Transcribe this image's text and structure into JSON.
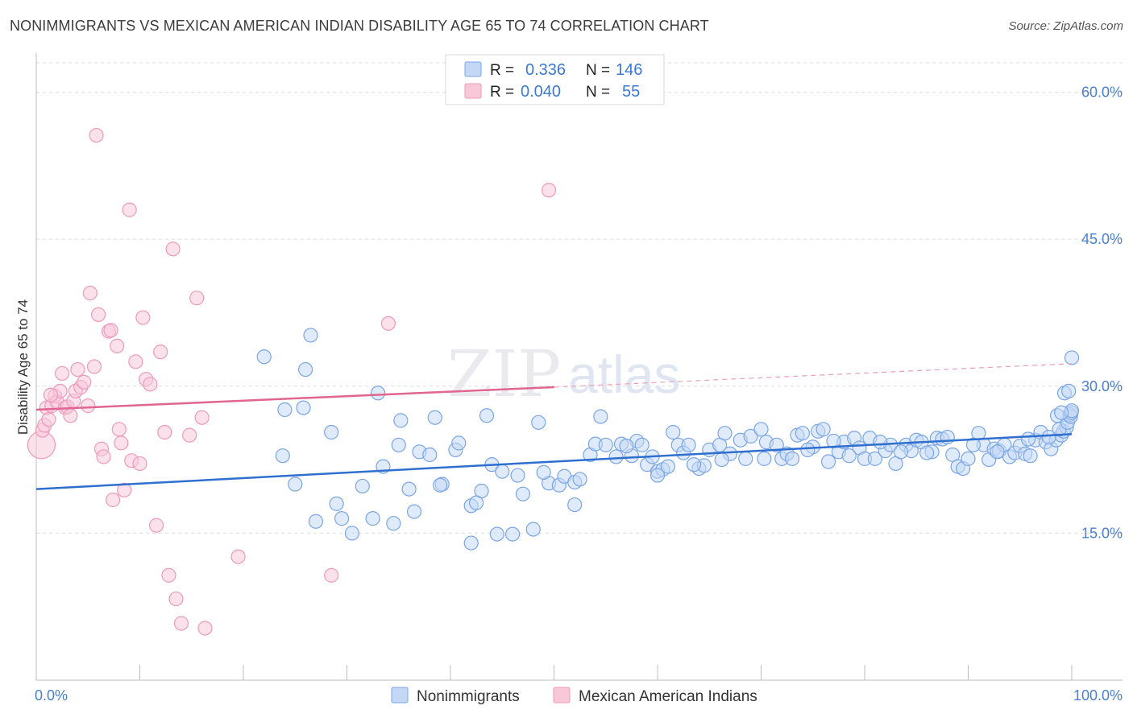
{
  "header": {
    "title": "NONIMMIGRANTS VS MEXICAN AMERICAN INDIAN DISABILITY AGE 65 TO 74 CORRELATION CHART",
    "source": "Source: ZipAtlas.com"
  },
  "watermark": {
    "zip": "ZIP",
    "atlas": "atlas"
  },
  "chart_data": {
    "type": "scatter",
    "xlabel": "",
    "ylabel": "Disability Age 65 to 74",
    "xlim": [
      0,
      100
    ],
    "ylim": [
      0,
      63
    ],
    "x_tick_labels": [
      {
        "value": 0,
        "label": "0.0%"
      },
      {
        "value": 100,
        "label": "100.0%"
      }
    ],
    "y_tick_labels": [
      {
        "value": 15,
        "label": "15.0%"
      },
      {
        "value": 30,
        "label": "30.0%"
      },
      {
        "value": 45,
        "label": "45.0%"
      },
      {
        "value": 60,
        "label": "60.0%"
      }
    ],
    "x_minor_ticks": [
      0,
      10,
      20,
      30,
      40,
      50,
      60,
      70,
      80,
      90,
      100
    ],
    "grid": true,
    "legend_position": "top-center",
    "stats": [
      {
        "r_label": "R =",
        "r_value": "0.336",
        "n_label": "N =",
        "n_value": "146",
        "color": "#6f9fe0"
      },
      {
        "r_label": "R =",
        "r_value": "0.040",
        "n_label": "N =",
        "n_value": "55",
        "color": "#ee8fb0"
      }
    ],
    "series": [
      {
        "name": "Nonimmigrants",
        "color": "#7aa6e6",
        "fill": "#c4d8f6",
        "trend": {
          "x0": 0,
          "y0": 19.5,
          "x1": 100,
          "y1": 25.1
        },
        "points": [
          [
            22.0,
            33.0
          ],
          [
            26.5,
            35.2
          ],
          [
            26.0,
            31.7
          ],
          [
            24.0,
            27.6
          ],
          [
            25.8,
            27.8
          ],
          [
            28.5,
            25.3
          ],
          [
            33.0,
            29.3
          ],
          [
            35.2,
            26.5
          ],
          [
            23.8,
            22.9
          ],
          [
            25.0,
            20.0
          ],
          [
            27.0,
            16.2
          ],
          [
            29.0,
            18.0
          ],
          [
            30.5,
            15.0
          ],
          [
            29.5,
            16.5
          ],
          [
            31.5,
            19.8
          ],
          [
            33.5,
            21.8
          ],
          [
            32.5,
            16.5
          ],
          [
            34.5,
            16.0
          ],
          [
            35.0,
            24.0
          ],
          [
            36.0,
            19.5
          ],
          [
            36.5,
            17.2
          ],
          [
            37.0,
            23.3
          ],
          [
            38.0,
            23.0
          ],
          [
            39.2,
            20.0
          ],
          [
            39.0,
            19.9
          ],
          [
            38.5,
            26.8
          ],
          [
            40.5,
            23.5
          ],
          [
            40.8,
            24.2
          ],
          [
            42.0,
            17.8
          ],
          [
            43.0,
            19.3
          ],
          [
            43.5,
            27.0
          ],
          [
            44.0,
            22.0
          ],
          [
            42.5,
            18.1
          ],
          [
            45.0,
            21.3
          ],
          [
            46.0,
            14.9
          ],
          [
            46.5,
            20.9
          ],
          [
            47.0,
            19.0
          ],
          [
            48.0,
            15.4
          ],
          [
            48.5,
            26.3
          ],
          [
            49.5,
            20.1
          ],
          [
            49.0,
            21.2
          ],
          [
            50.5,
            19.9
          ],
          [
            51.0,
            20.8
          ],
          [
            52.0,
            20.2
          ],
          [
            52.5,
            20.5
          ],
          [
            52.0,
            17.9
          ],
          [
            53.5,
            23.0
          ],
          [
            54.0,
            24.1
          ],
          [
            54.5,
            26.9
          ],
          [
            55.0,
            24.0
          ],
          [
            56.0,
            22.8
          ],
          [
            56.5,
            24.1
          ],
          [
            57.5,
            22.9
          ],
          [
            58.0,
            24.4
          ],
          [
            59.0,
            22.0
          ],
          [
            59.5,
            22.8
          ],
          [
            60.0,
            21.3
          ],
          [
            60.5,
            21.5
          ],
          [
            61.5,
            25.3
          ],
          [
            62.0,
            24.0
          ],
          [
            62.5,
            23.2
          ],
          [
            63.0,
            24.0
          ],
          [
            64.0,
            21.6
          ],
          [
            64.5,
            21.9
          ],
          [
            65.0,
            23.5
          ],
          [
            66.0,
            24.0
          ],
          [
            66.5,
            25.2
          ],
          [
            67.0,
            23.1
          ],
          [
            68.0,
            24.5
          ],
          [
            68.5,
            22.6
          ],
          [
            69.0,
            24.9
          ],
          [
            70.0,
            25.6
          ],
          [
            70.5,
            24.3
          ],
          [
            71.5,
            24.0
          ],
          [
            72.0,
            22.6
          ],
          [
            72.5,
            23.1
          ],
          [
            73.5,
            25.0
          ],
          [
            74.0,
            25.2
          ],
          [
            75.0,
            23.8
          ],
          [
            75.5,
            25.4
          ],
          [
            76.0,
            25.6
          ],
          [
            76.5,
            22.3
          ],
          [
            77.5,
            23.3
          ],
          [
            78.0,
            24.3
          ],
          [
            79.0,
            24.7
          ],
          [
            79.5,
            23.7
          ],
          [
            80.0,
            22.6
          ],
          [
            80.5,
            24.7
          ],
          [
            81.0,
            22.6
          ],
          [
            82.0,
            23.4
          ],
          [
            82.5,
            24.0
          ],
          [
            83.0,
            22.1
          ],
          [
            84.0,
            24.0
          ],
          [
            84.5,
            23.4
          ],
          [
            85.0,
            24.5
          ],
          [
            85.5,
            24.3
          ],
          [
            86.5,
            23.3
          ],
          [
            87.0,
            24.7
          ],
          [
            87.5,
            24.6
          ],
          [
            88.5,
            23.0
          ],
          [
            89.0,
            21.8
          ],
          [
            89.5,
            21.6
          ],
          [
            90.0,
            22.6
          ],
          [
            91.0,
            25.2
          ],
          [
            91.5,
            24.0
          ],
          [
            92.0,
            22.5
          ],
          [
            92.5,
            23.6
          ],
          [
            93.0,
            23.4
          ],
          [
            93.5,
            24.0
          ],
          [
            94.0,
            22.8
          ],
          [
            94.5,
            23.2
          ],
          [
            95.0,
            23.9
          ],
          [
            95.5,
            23.1
          ],
          [
            96.0,
            22.9
          ],
          [
            96.5,
            24.5
          ],
          [
            97.0,
            25.3
          ],
          [
            97.5,
            24.3
          ],
          [
            98.0,
            23.6
          ],
          [
            98.5,
            24.5
          ],
          [
            99.0,
            25.0
          ],
          [
            99.2,
            25.4
          ],
          [
            99.5,
            25.8
          ],
          [
            98.8,
            25.6
          ],
          [
            99.6,
            26.3
          ],
          [
            99.8,
            27.1
          ],
          [
            99.9,
            26.9
          ],
          [
            99.95,
            27.3
          ],
          [
            100.0,
            27.5
          ],
          [
            98.6,
            27.0
          ],
          [
            99.0,
            27.3
          ],
          [
            99.3,
            29.3
          ],
          [
            99.7,
            29.5
          ],
          [
            100.0,
            32.9
          ],
          [
            60.0,
            20.9
          ],
          [
            61.0,
            21.8
          ],
          [
            63.5,
            22.0
          ],
          [
            58.5,
            24.0
          ],
          [
            57.0,
            23.9
          ],
          [
            66.2,
            22.5
          ],
          [
            70.3,
            22.6
          ],
          [
            73.0,
            22.6
          ],
          [
            74.5,
            23.5
          ],
          [
            77.0,
            24.4
          ],
          [
            78.5,
            22.9
          ],
          [
            81.5,
            24.3
          ],
          [
            83.5,
            23.3
          ],
          [
            86.0,
            23.2
          ],
          [
            88.0,
            24.8
          ],
          [
            90.5,
            24.0
          ],
          [
            92.8,
            23.3
          ],
          [
            95.8,
            24.6
          ],
          [
            97.8,
            24.8
          ],
          [
            44.5,
            14.9
          ],
          [
            42.0,
            14.0
          ]
        ]
      },
      {
        "name": "Mexican American Indians",
        "color": "#ee9ab8",
        "fill": "#f8c8d8",
        "trend": {
          "x0": 0,
          "y0": 27.6,
          "x1": 50,
          "y1": 29.9,
          "x2": 100,
          "y2": 32.3
        },
        "points": [
          [
            0.5,
            24.0
          ],
          [
            0.6,
            25.5
          ],
          [
            0.8,
            26.0
          ],
          [
            1.0,
            27.8
          ],
          [
            1.2,
            26.6
          ],
          [
            1.5,
            28.0
          ],
          [
            1.8,
            29.0
          ],
          [
            2.0,
            28.4
          ],
          [
            2.3,
            29.5
          ],
          [
            2.5,
            31.3
          ],
          [
            2.8,
            27.8
          ],
          [
            3.0,
            27.9
          ],
          [
            3.3,
            27.0
          ],
          [
            3.6,
            28.5
          ],
          [
            3.8,
            29.5
          ],
          [
            4.0,
            31.7
          ],
          [
            4.3,
            29.9
          ],
          [
            4.6,
            30.4
          ],
          [
            5.0,
            28.0
          ],
          [
            5.2,
            39.5
          ],
          [
            5.6,
            32.0
          ],
          [
            6.0,
            37.3
          ],
          [
            6.3,
            23.6
          ],
          [
            6.5,
            22.8
          ],
          [
            7.0,
            35.6
          ],
          [
            7.2,
            35.7
          ],
          [
            7.4,
            18.4
          ],
          [
            7.8,
            34.1
          ],
          [
            8.0,
            25.6
          ],
          [
            8.2,
            24.2
          ],
          [
            8.5,
            19.4
          ],
          [
            9.0,
            48.0
          ],
          [
            9.2,
            22.4
          ],
          [
            9.6,
            32.5
          ],
          [
            10.0,
            22.1
          ],
          [
            10.3,
            37.0
          ],
          [
            10.6,
            30.7
          ],
          [
            11.0,
            30.2
          ],
          [
            11.6,
            15.8
          ],
          [
            12.0,
            33.5
          ],
          [
            12.4,
            25.3
          ],
          [
            12.8,
            10.7
          ],
          [
            13.2,
            44.0
          ],
          [
            13.5,
            8.3
          ],
          [
            14.0,
            5.8
          ],
          [
            14.8,
            25.0
          ],
          [
            15.5,
            39.0
          ],
          [
            16.0,
            26.8
          ],
          [
            16.3,
            5.3
          ],
          [
            19.5,
            12.6
          ],
          [
            5.8,
            55.6
          ],
          [
            34.0,
            36.4
          ],
          [
            28.5,
            10.7
          ],
          [
            49.5,
            50.0
          ],
          [
            1.4,
            29.1
          ]
        ]
      }
    ]
  },
  "legend": {
    "items": [
      {
        "label": "Nonimmigrants"
      },
      {
        "label": "Mexican American Indians"
      }
    ]
  }
}
